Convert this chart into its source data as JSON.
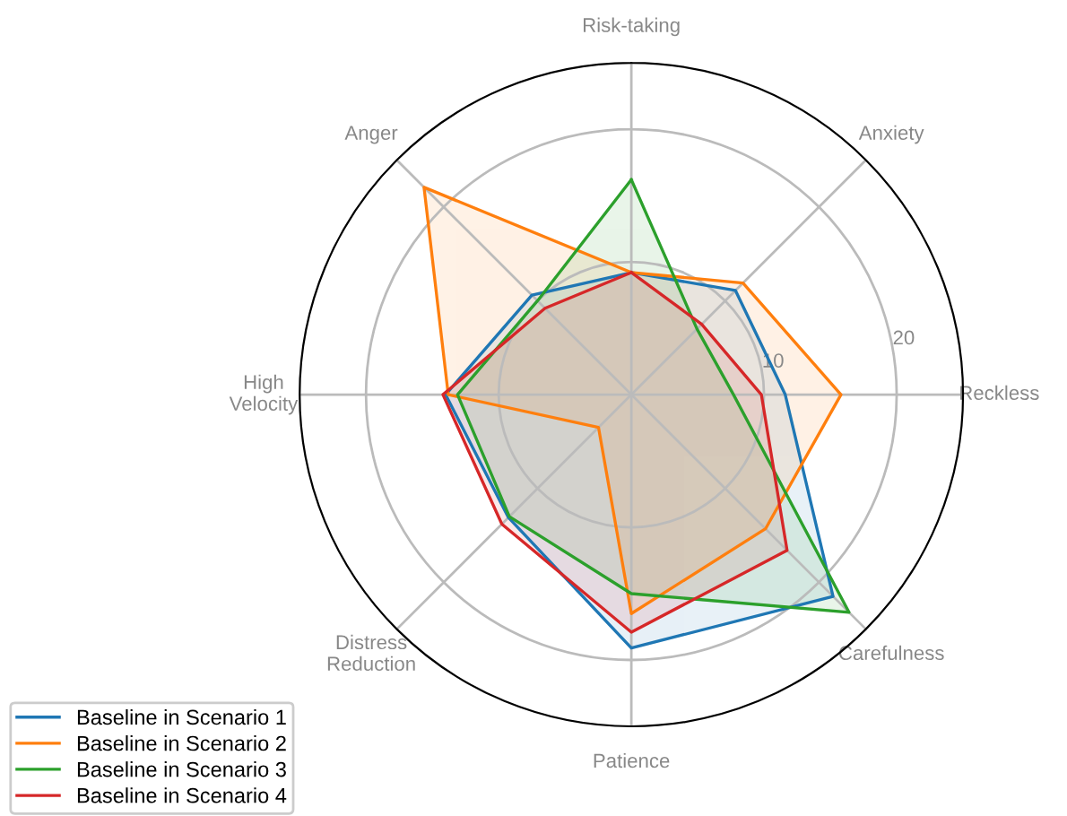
{
  "chart_data": {
    "type": "radar",
    "categories": [
      "Risk-taking",
      "Anxiety",
      "Reckless",
      "Carefulness",
      "Patience",
      "Distress\nReduction",
      "High\nVelocity",
      "Anger"
    ],
    "ylim": [
      0,
      25
    ],
    "yticks": [
      10,
      20
    ],
    "grid": true,
    "legend": "bottom left",
    "series": [
      {
        "name": "Baseline in Scenario 1",
        "color": "#1f77b4",
        "values": [
          9.2,
          11.1,
          11.6,
          21.5,
          19.1,
          13.1,
          14.0,
          10.6
        ]
      },
      {
        "name": "Baseline in Scenario 2",
        "color": "#ff7f0e",
        "values": [
          9.2,
          11.9,
          15.8,
          14.3,
          16.5,
          3.5,
          13.8,
          22.1
        ]
      },
      {
        "name": "Baseline in Scenario 3",
        "color": "#2ca02c",
        "values": [
          16.2,
          7.0,
          7.7,
          23.2,
          15.0,
          13.0,
          13.1,
          10.0
        ]
      },
      {
        "name": "Baseline in Scenario 4",
        "color": "#d62728",
        "values": [
          9.2,
          7.5,
          9.8,
          16.6,
          17.9,
          13.8,
          14.2,
          9.2
        ]
      }
    ]
  }
}
